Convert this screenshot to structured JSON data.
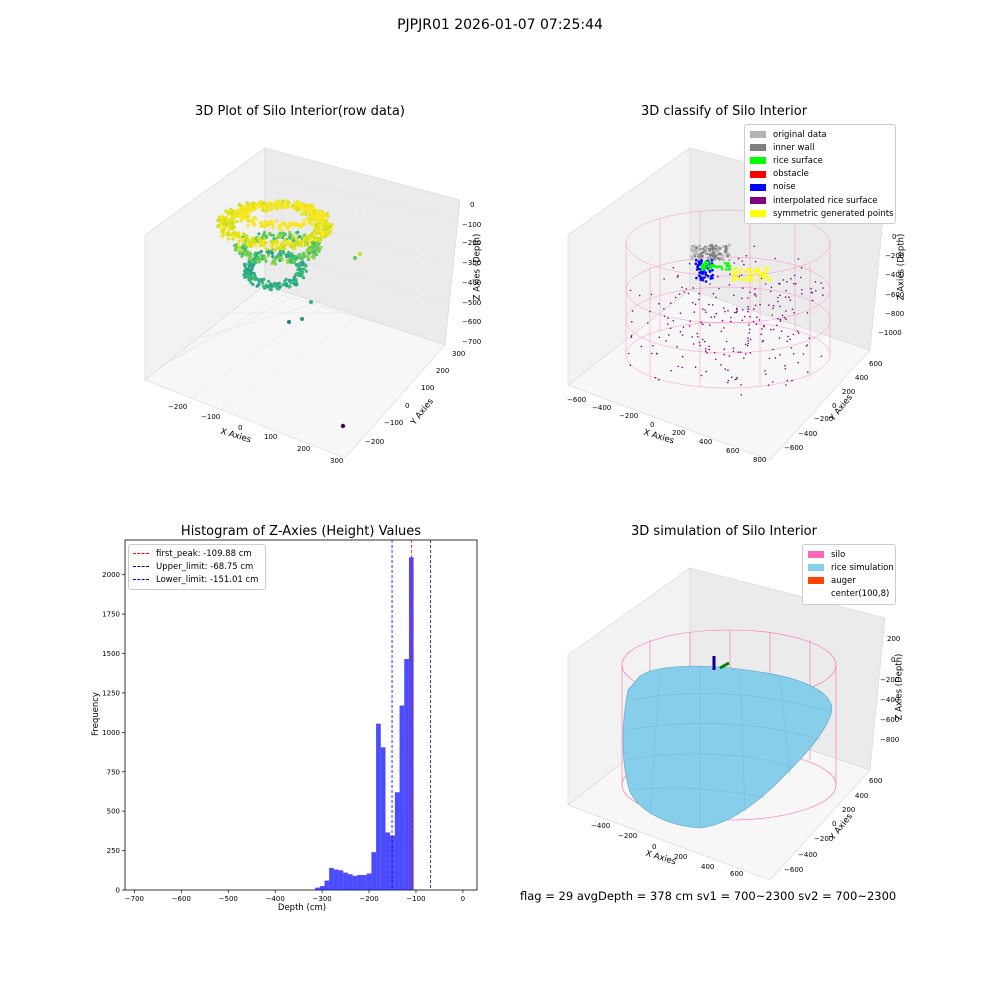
{
  "suptitle": "PJPJR01 2026-01-07 07:25:44",
  "panels": {
    "raw": {
      "title": "3D Plot of Silo Interior(row data)",
      "xlabel": "X Axies",
      "ylabel": "Y Axies",
      "zlabel": "Z Axies (Depth)",
      "xticks": [
        "−200",
        "−100",
        "0",
        "100",
        "200",
        "300"
      ],
      "yticks": [
        "−200",
        "−100",
        "0",
        "100",
        "200",
        "300"
      ],
      "zticks": [
        "0",
        "−100",
        "−200",
        "−300",
        "−400",
        "−500",
        "−600",
        "−700"
      ]
    },
    "classify": {
      "title": "3D classify of Silo Interior",
      "xlabel": "X Axies",
      "ylabel": "Y Axies",
      "zlabel": "Z Axies (Depth)",
      "xticks": [
        "−600",
        "−400",
        "−200",
        "0",
        "200",
        "400",
        "600",
        "800"
      ],
      "yticks": [
        "−600",
        "−400",
        "−200",
        "0",
        "200",
        "400",
        "600"
      ],
      "zticks": [
        "0",
        "−200",
        "−400",
        "−600",
        "−800",
        "−1000"
      ],
      "legend": [
        {
          "label": "original data",
          "color": "#b3b3b3"
        },
        {
          "label": "inner wall",
          "color": "#808080"
        },
        {
          "label": "rice surface",
          "color": "#00ff00"
        },
        {
          "label": "obstacle",
          "color": "#ff0000"
        },
        {
          "label": "noise",
          "color": "#0000ff"
        },
        {
          "label": "interpolated rice surface",
          "color": "#800080"
        },
        {
          "label": "symmetric generated points",
          "color": "#ffff00"
        }
      ]
    },
    "simulation": {
      "title": "3D simulation of Silo Interior",
      "xlabel": "X Axies",
      "ylabel": "Y Axies",
      "zlabel": "Z Axies (Depth)",
      "xticks": [
        "−400",
        "−200",
        "0",
        "200",
        "400",
        "600"
      ],
      "yticks": [
        "−600",
        "−400",
        "−200",
        "0",
        "200",
        "400",
        "600"
      ],
      "zticks": [
        "200",
        "0",
        "−200",
        "−400",
        "−600",
        "−800"
      ],
      "legend": [
        {
          "label": "silo",
          "color": "#ff69b4"
        },
        {
          "label": "rice simulation",
          "color": "#87ceeb"
        },
        {
          "label": "auger",
          "color": "#ff4500"
        },
        {
          "label": "center(100,8)",
          "color": "#ffffff"
        }
      ]
    }
  },
  "chart_data": [
    {
      "type": "bar",
      "title": "Histogram of Z-Axies (Height) Values",
      "xlabel": "Depth (cm)",
      "ylabel": "Frequency",
      "xlim": [
        -720,
        30
      ],
      "ylim": [
        0,
        2220
      ],
      "xticks": [
        -700,
        -600,
        -500,
        -400,
        -300,
        -200,
        -100,
        0
      ],
      "yticks": [
        0,
        250,
        500,
        750,
        1000,
        1250,
        1500,
        1750,
        2000
      ],
      "bar_color": "#0000ff",
      "bin_width": 10,
      "bins": [
        {
          "x": -315,
          "v": 15
        },
        {
          "x": -305,
          "v": 25
        },
        {
          "x": -295,
          "v": 60
        },
        {
          "x": -285,
          "v": 140
        },
        {
          "x": -275,
          "v": 130
        },
        {
          "x": -265,
          "v": 125
        },
        {
          "x": -255,
          "v": 110
        },
        {
          "x": -245,
          "v": 100
        },
        {
          "x": -235,
          "v": 90
        },
        {
          "x": -225,
          "v": 95
        },
        {
          "x": -215,
          "v": 95
        },
        {
          "x": -205,
          "v": 105
        },
        {
          "x": -195,
          "v": 240
        },
        {
          "x": -185,
          "v": 1055
        },
        {
          "x": -175,
          "v": 905
        },
        {
          "x": -165,
          "v": 365
        },
        {
          "x": -155,
          "v": 345
        },
        {
          "x": -145,
          "v": 620
        },
        {
          "x": -135,
          "v": 1170
        },
        {
          "x": -125,
          "v": 1465
        },
        {
          "x": -115,
          "v": 2110
        }
      ],
      "vlines": [
        {
          "name": "first_peak: -109.88 cm",
          "x": -109.88,
          "color": "#ff0000"
        },
        {
          "name": "Upper_limit: -68.75 cm",
          "x": -68.75,
          "color": "#00008b"
        },
        {
          "name": "Lower_limit: -151.01 cm",
          "x": -151.01,
          "color": "#0000ff"
        }
      ],
      "legend_position": "top-left"
    }
  ],
  "footer": {
    "text": "flag = 29  avgDepth = 378 cm  sv1 = 700~2300  sv2 = 700~2300"
  }
}
